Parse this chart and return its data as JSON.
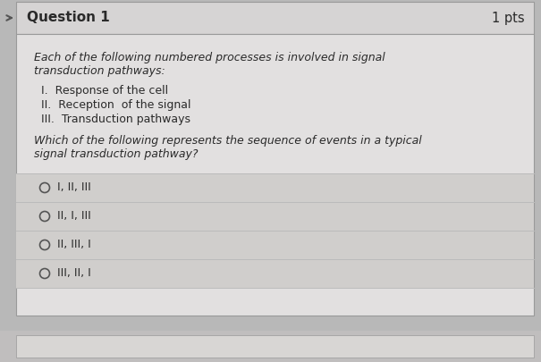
{
  "title": "Question 1",
  "pts": "1 pts",
  "bg_outer": "#b8b8b8",
  "bg_header": "#d6d4d4",
  "bg_content": "#e2e0e0",
  "bg_option": "#d0cecc",
  "bg_bottom_strip": "#c0bebe",
  "intro_line1": "Each of the following numbered processes is involved in signal",
  "intro_line2": "transduction pathways:",
  "items": [
    "I.  Response of the cell",
    "II.  Reception  of the signal",
    "III.  Transduction pathways"
  ],
  "question_line1": "Which of the following represents the sequence of events in a typical",
  "question_line2": "signal transduction pathway?",
  "options": [
    "I, II, III",
    "II, I, III",
    "II, III, I",
    "III, II, I"
  ],
  "title_color": "#2a2a2a",
  "text_color": "#2a2a2a",
  "border_color": "#999999",
  "circle_color": "#555555",
  "sep_color": "#bbbbbb",
  "left_indicator_color": "#555555"
}
